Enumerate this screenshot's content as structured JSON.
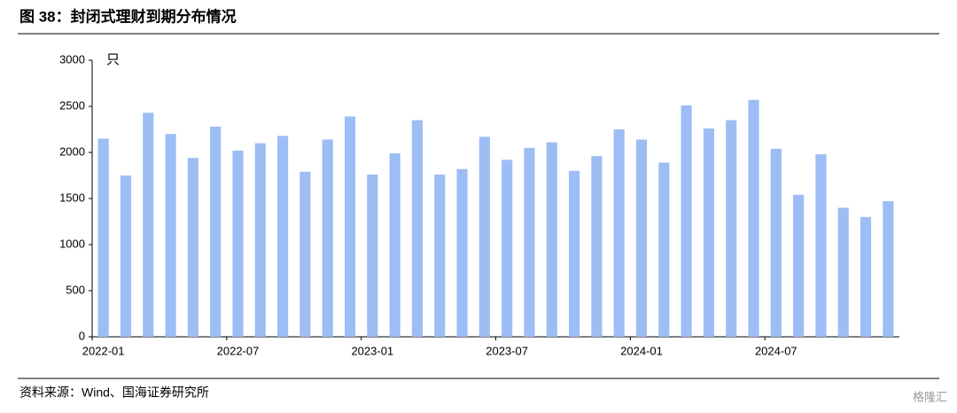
{
  "chart_data": {
    "type": "bar",
    "title": "图 38：封闭式理财到期分布情况",
    "y_unit": "只",
    "source": "资料来源：Wind、国海证券研究所",
    "watermark": "格隆汇",
    "categories": [
      "2022-01",
      null,
      null,
      null,
      null,
      null,
      "2022-07",
      null,
      null,
      null,
      null,
      null,
      "2023-01",
      null,
      null,
      null,
      null,
      null,
      "2023-07",
      null,
      null,
      null,
      null,
      null,
      "2024-01",
      null,
      null,
      null,
      null,
      null,
      "2024-07",
      null,
      null,
      null,
      null,
      null
    ],
    "values": [
      2150,
      1750,
      2430,
      2200,
      1940,
      2280,
      2020,
      2100,
      2180,
      1790,
      2140,
      2390,
      1760,
      1990,
      2350,
      1760,
      1820,
      2170,
      1920,
      2050,
      2110,
      1800,
      1960,
      2250,
      2140,
      1890,
      2510,
      2260,
      2350,
      2570,
      2040,
      1540,
      1980,
      1400,
      1300,
      1470
    ],
    "color": "#9dbdf5",
    "ylim": [
      0,
      3000
    ],
    "yticks": [
      0,
      500,
      1000,
      1500,
      2000,
      2500,
      3000
    ],
    "grid": false
  }
}
